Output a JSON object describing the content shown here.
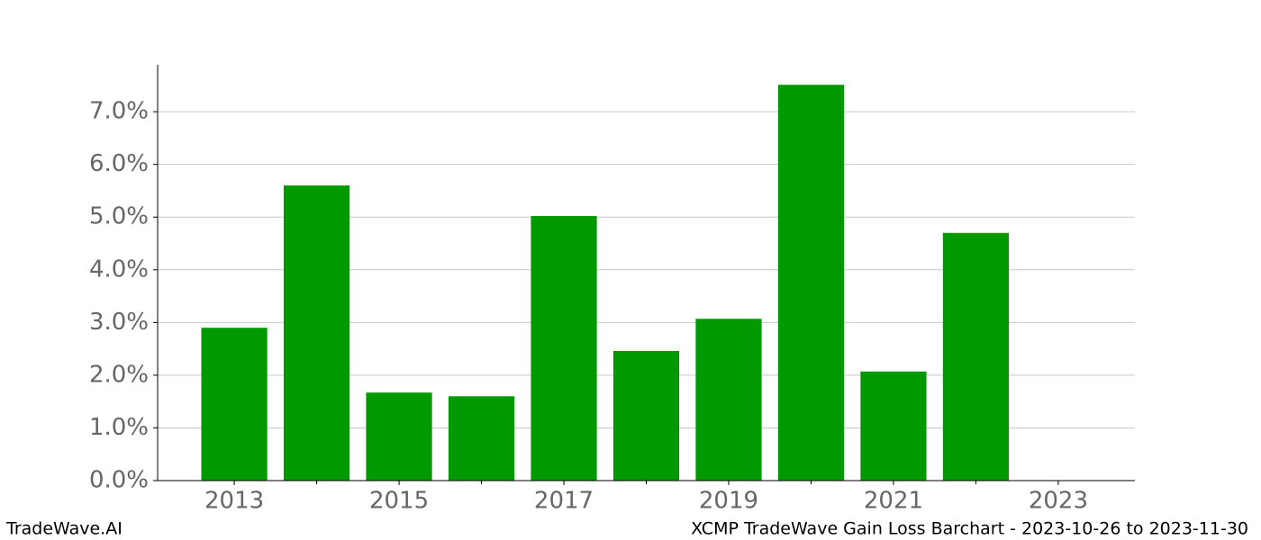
{
  "chart_data": {
    "type": "bar",
    "title": "XCMP TradeWave Gain Loss Barchart - 2023-10-26 to 2023-11-30",
    "watermark": "TradeWave.AI",
    "x": [
      2013,
      2014,
      2015,
      2016,
      2017,
      2018,
      2019,
      2020,
      2021,
      2022
    ],
    "values": [
      2.9,
      5.6,
      1.67,
      1.6,
      5.02,
      2.46,
      3.07,
      7.51,
      2.07,
      4.7
    ],
    "color": "#009900",
    "bar_width": 0.8,
    "xlim": [
      2012.07,
      2023.93
    ],
    "xticks": [
      2013,
      2015,
      2017,
      2019,
      2021,
      2023
    ],
    "xminor_ticks": [
      2014,
      2016,
      2018,
      2020,
      2022
    ],
    "ylim": [
      0,
      7.89
    ],
    "yticks": [
      {
        "value": 0,
        "label": "0.0%"
      },
      {
        "value": 1,
        "label": "1.0%"
      },
      {
        "value": 2,
        "label": "2.0%"
      },
      {
        "value": 3,
        "label": "3.0%"
      },
      {
        "value": 4,
        "label": "4.0%"
      },
      {
        "value": 5,
        "label": "5.0%"
      },
      {
        "value": 6,
        "label": "6.0%"
      },
      {
        "value": 7,
        "label": "7.0%"
      }
    ],
    "grid": true
  }
}
